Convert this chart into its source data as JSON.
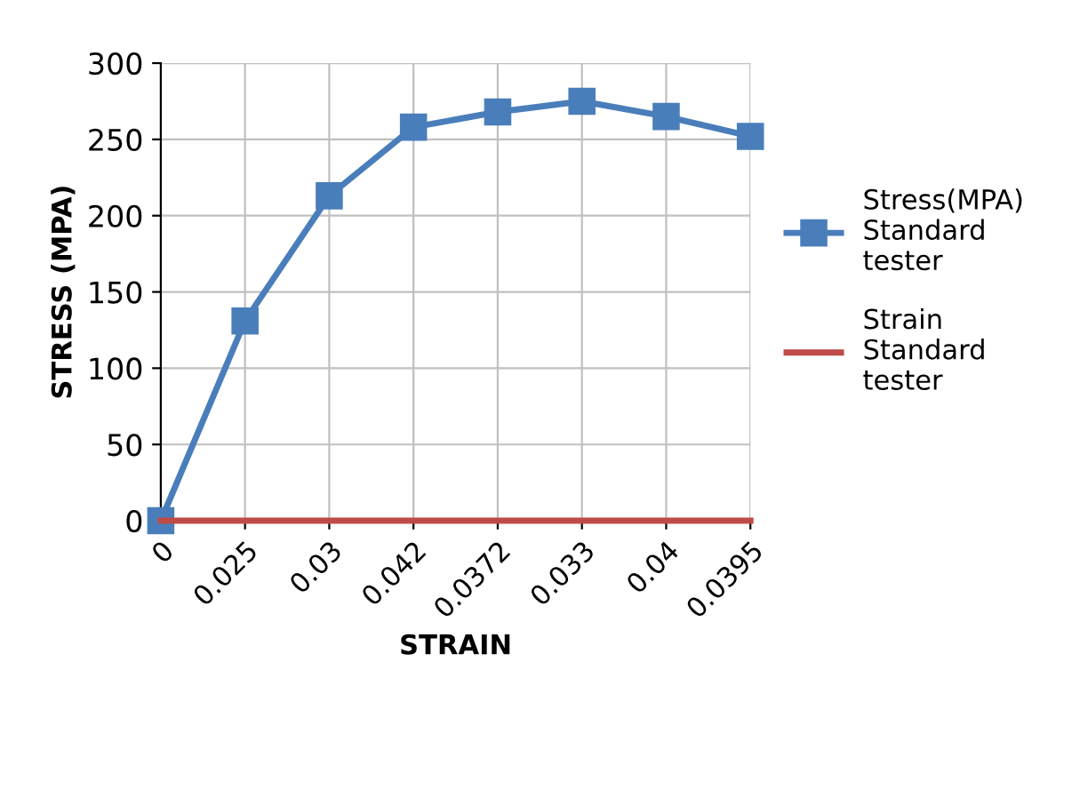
{
  "chart_data": {
    "type": "line",
    "xlabel": "STRAIN",
    "ylabel": "STRESS (MPA)",
    "categories": [
      "0",
      "0.025",
      "0.03",
      "0.042",
      "0.0372",
      "0.033",
      "0.04",
      "0.0395"
    ],
    "series": [
      {
        "name": "Stress(MPA)\nStandard\ntester",
        "color": "#4a7ebb",
        "marker": "square",
        "values": [
          0,
          131,
          213,
          258,
          268,
          275,
          265,
          252
        ]
      },
      {
        "name": "Strain\nStandard\ntester",
        "color": "#be4b48",
        "marker": "none",
        "values": [
          0,
          0.025,
          0.03,
          0.042,
          0.0372,
          0.033,
          0.04,
          0.0395
        ]
      }
    ],
    "ylim": [
      0,
      300
    ],
    "yticks": [
      0,
      50,
      100,
      150,
      200,
      250,
      300
    ],
    "grid": true,
    "legend": "right"
  }
}
